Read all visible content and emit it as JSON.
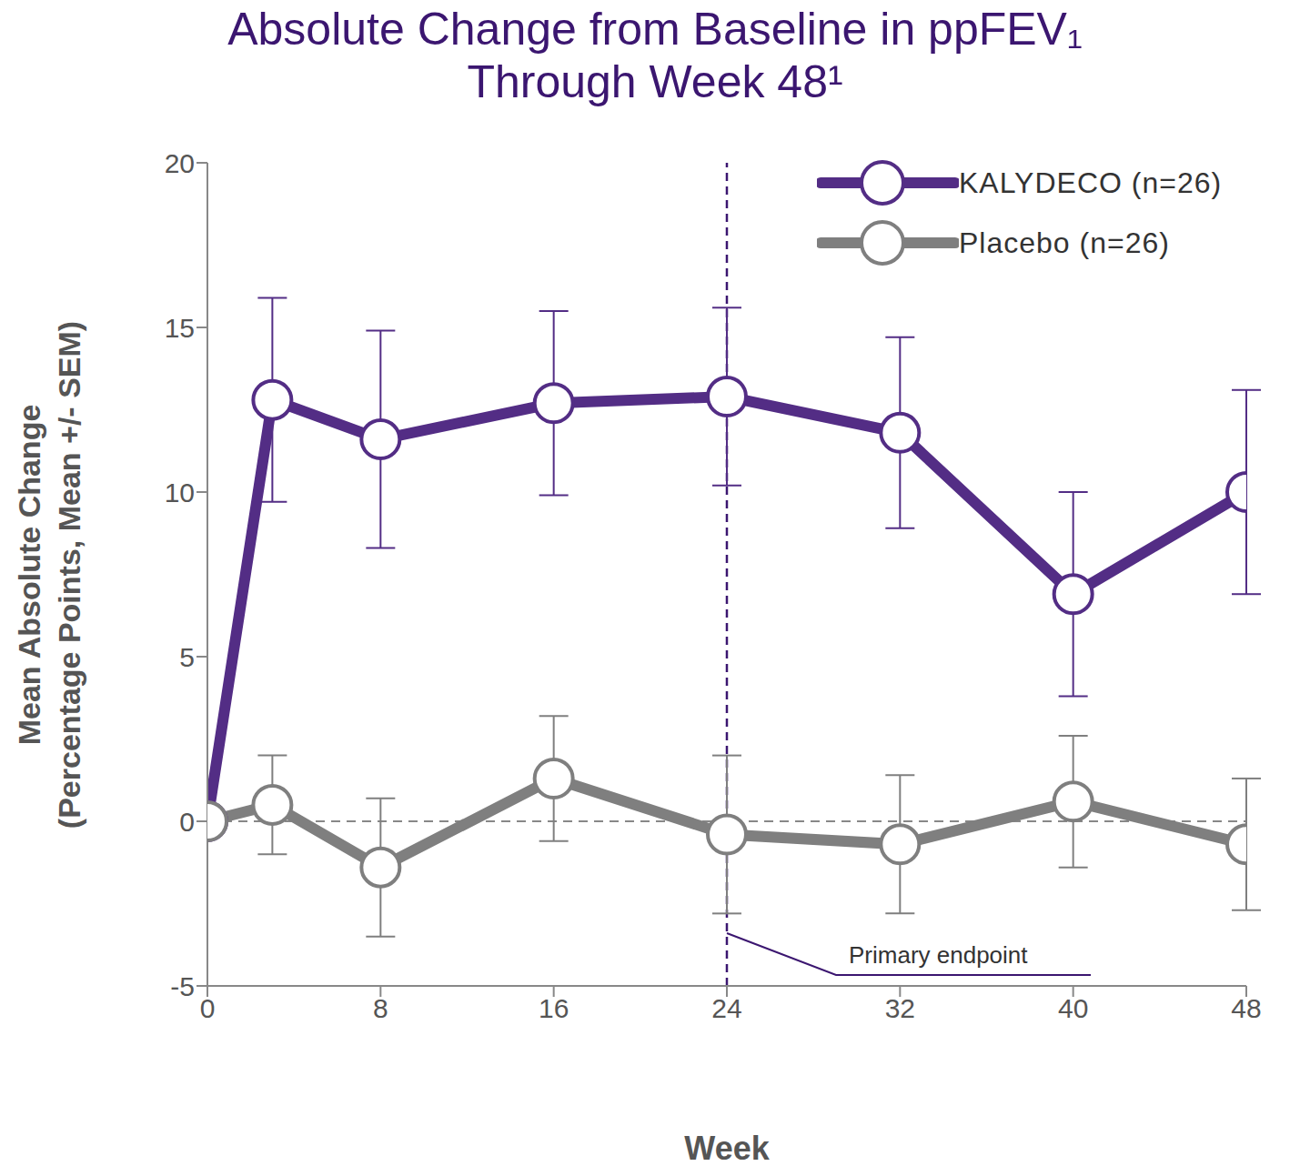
{
  "chart_data": {
    "type": "line",
    "title": "Absolute Change from Baseline in ppFEV₁ Through Week 48¹",
    "x_label": "Week",
    "y_label": "Mean Absolute Change (Percentage Points, Mean +/- SEM)",
    "x": [
      0,
      3,
      8,
      16,
      24,
      32,
      40,
      48
    ],
    "series": [
      {
        "name": "KALYDECO (n=26)",
        "color": "#532d85",
        "marker": "circle",
        "line_style": "solid",
        "values": [
          0,
          12.8,
          11.6,
          12.7,
          12.9,
          11.8,
          6.9,
          10.0
        ],
        "sem": [
          0,
          3.1,
          3.3,
          2.8,
          2.7,
          2.9,
          3.1,
          3.1
        ]
      },
      {
        "name": "Placebo (n=26)",
        "color": "#7f7f7f",
        "marker": "circle",
        "line_style": "solid",
        "values": [
          0,
          0.5,
          -1.4,
          1.3,
          -0.4,
          -0.7,
          0.6,
          -0.7
        ],
        "sem": [
          0,
          1.5,
          2.1,
          1.9,
          2.4,
          2.1,
          2.0,
          2.0
        ]
      }
    ],
    "xlim": [
      0,
      48
    ],
    "xticks": [
      0,
      8,
      16,
      24,
      32,
      40,
      48
    ],
    "ylim": [
      -5,
      20
    ],
    "yticks": [
      -5,
      0,
      5,
      10,
      15,
      20
    ],
    "grid": false,
    "legend": "top right",
    "annotations": [
      {
        "type": "vline",
        "x": 24,
        "text": "Primary endpoint",
        "color": "#3b1670"
      },
      {
        "type": "hline",
        "y": 0,
        "color": "#888888"
      }
    ]
  }
}
